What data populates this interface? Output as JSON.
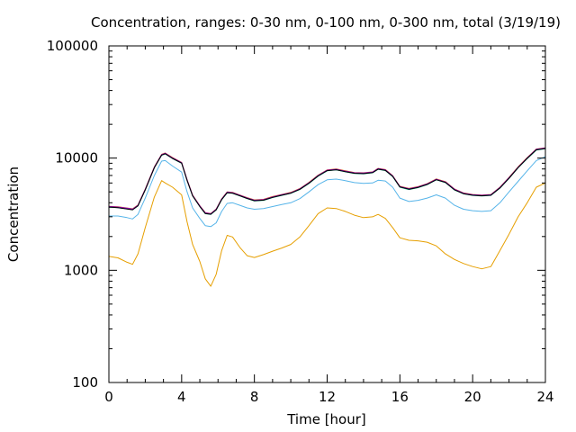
{
  "chart_data": {
    "type": "line",
    "title": "Concentration, ranges: 0-30 nm, 0-100 nm, 0-300 nm, total (3/19/19)",
    "xlabel": "Time [hour]",
    "ylabel": "Concentration",
    "xlim": [
      0,
      24
    ],
    "ylim": [
      100,
      100000
    ],
    "yscale": "log",
    "grid": false,
    "legend": "none",
    "x_ticks": [
      "0",
      "4",
      "8",
      "12",
      "16",
      "20",
      "24"
    ],
    "y_ticks": [
      "100",
      "1000",
      "10000",
      "100000"
    ],
    "x": [
      0,
      0.5,
      1,
      1.3,
      1.6,
      2,
      2.5,
      2.9,
      3.1,
      3.5,
      4,
      4.3,
      4.6,
      5,
      5.3,
      5.6,
      5.9,
      6.2,
      6.5,
      6.8,
      7.2,
      7.6,
      8,
      8.5,
      9,
      9.5,
      10,
      10.5,
      11,
      11.5,
      12,
      12.5,
      13,
      13.5,
      14,
      14.5,
      14.8,
      15.2,
      15.6,
      16,
      16.5,
      17,
      17.5,
      18,
      18.5,
      19,
      19.5,
      20,
      20.5,
      21,
      21.5,
      22,
      22.5,
      23,
      23.5,
      24
    ],
    "series": [
      {
        "color": "#e69f00",
        "values": [
          1330,
          1290,
          1180,
          1130,
          1400,
          2400,
          4500,
          6300,
          6000,
          5500,
          4700,
          2700,
          1700,
          1200,
          840,
          720,
          920,
          1500,
          2050,
          1980,
          1600,
          1350,
          1300,
          1380,
          1480,
          1580,
          1700,
          1980,
          2500,
          3200,
          3600,
          3550,
          3350,
          3100,
          2950,
          3000,
          3150,
          2900,
          2400,
          1950,
          1850,
          1830,
          1780,
          1650,
          1400,
          1250,
          1150,
          1080,
          1030,
          1080,
          1500,
          2100,
          3000,
          4000,
          5500,
          6000
        ]
      },
      {
        "color": "#56b4e9",
        "values": [
          3050,
          3050,
          2950,
          2870,
          3150,
          4400,
          7000,
          9400,
          9500,
          8500,
          7500,
          5000,
          3600,
          2900,
          2500,
          2450,
          2650,
          3350,
          3950,
          4000,
          3800,
          3600,
          3500,
          3550,
          3700,
          3850,
          4000,
          4350,
          5000,
          5800,
          6400,
          6500,
          6300,
          6050,
          5950,
          6000,
          6350,
          6250,
          5500,
          4400,
          4100,
          4200,
          4400,
          4700,
          4400,
          3800,
          3500,
          3400,
          3350,
          3400,
          4000,
          5000,
          6200,
          7700,
          9500,
          10300
        ]
      },
      {
        "color": "#009e73",
        "values": [
          3650,
          3620,
          3530,
          3470,
          3750,
          5200,
          8200,
          10600,
          10900,
          9900,
          9000,
          6300,
          4600,
          3700,
          3200,
          3150,
          3450,
          4250,
          4900,
          4850,
          4600,
          4350,
          4150,
          4200,
          4450,
          4650,
          4850,
          5250,
          5950,
          6900,
          7700,
          7850,
          7550,
          7300,
          7250,
          7400,
          7950,
          7750,
          6850,
          5500,
          5250,
          5450,
          5800,
          6400,
          6050,
          5200,
          4800,
          4650,
          4600,
          4650,
          5400,
          6600,
          8200,
          9900,
          11800,
          12100
        ]
      },
      {
        "color": "#0072b2",
        "values": [
          3680,
          3640,
          3550,
          3490,
          3780,
          5240,
          8260,
          10680,
          10980,
          9980,
          9070,
          6350,
          4640,
          3730,
          3230,
          3180,
          3480,
          4290,
          4940,
          4890,
          4640,
          4390,
          4190,
          4240,
          4490,
          4690,
          4890,
          5290,
          6000,
          6960,
          7760,
          7910,
          7610,
          7360,
          7310,
          7460,
          8010,
          7810,
          6910,
          5550,
          5300,
          5500,
          5850,
          6450,
          6100,
          5240,
          4840,
          4690,
          4640,
          4690,
          5440,
          6650,
          8260,
          9980,
          11900,
          12200
        ]
      },
      {
        "color": "#d55e00",
        "values": [
          3720,
          3680,
          3590,
          3530,
          3820,
          5300,
          8350,
          10800,
          11100,
          10100,
          9170,
          6420,
          4690,
          3770,
          3270,
          3210,
          3520,
          4340,
          5000,
          4950,
          4690,
          4440,
          4240,
          4290,
          4540,
          4740,
          4940,
          5350,
          6070,
          7040,
          7850,
          8000,
          7700,
          7440,
          7390,
          7540,
          8100,
          7900,
          6990,
          5610,
          5360,
          5560,
          5920,
          6520,
          6170,
          5300,
          4890,
          4740,
          4690,
          4740,
          5500,
          6730,
          8350,
          10100,
          12050,
          12350
        ]
      },
      {
        "color": "#9400d3",
        "values": [
          3700,
          3660,
          3570,
          3510,
          3800,
          5270,
          8300,
          10740,
          11040,
          10040,
          9120,
          6390,
          4660,
          3750,
          3250,
          3190,
          3500,
          4310,
          4970,
          4920,
          4660,
          4410,
          4210,
          4260,
          4510,
          4710,
          4910,
          5320,
          6030,
          7000,
          7800,
          7950,
          7650,
          7400,
          7350,
          7500,
          8050,
          7850,
          6950,
          5580,
          5330,
          5530,
          5880,
          6480,
          6130,
          5270,
          4860,
          4710,
          4660,
          4710,
          5470,
          6690,
          8300,
          10040,
          11980,
          12280
        ]
      },
      {
        "color": "#000000",
        "values": [
          3660,
          3620,
          3520,
          3460,
          3760,
          5220,
          8220,
          10640,
          10940,
          9940,
          9030,
          6330,
          4620,
          3710,
          3210,
          3160,
          3460,
          4270,
          4920,
          4870,
          4620,
          4370,
          4170,
          4220,
          4470,
          4670,
          4870,
          5270,
          5980,
          6930,
          7730,
          7880,
          7580,
          7330,
          7280,
          7430,
          7980,
          7780,
          6880,
          5530,
          5280,
          5480,
          5830,
          6420,
          6080,
          5220,
          4820,
          4670,
          4620,
          4670,
          5420,
          6620,
          8230,
          9950,
          11870,
          12170
        ]
      }
    ]
  }
}
